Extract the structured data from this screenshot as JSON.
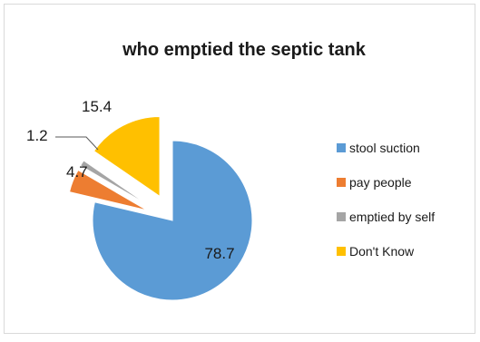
{
  "chart_data": {
    "type": "pie",
    "title": "who emptied the septic tank",
    "exploded": true,
    "legend_position": "right",
    "categories": [
      "stool suction",
      "pay people",
      "emptied by self",
      "Don't Know"
    ],
    "values": [
      78.7,
      4.7,
      1.2,
      15.4
    ],
    "colors": [
      "#5b9bd5",
      "#ed7d31",
      "#a5a5a5",
      "#ffc000"
    ],
    "data_labels": [
      "78.7",
      "4.7",
      "1.2",
      "15.4"
    ]
  }
}
